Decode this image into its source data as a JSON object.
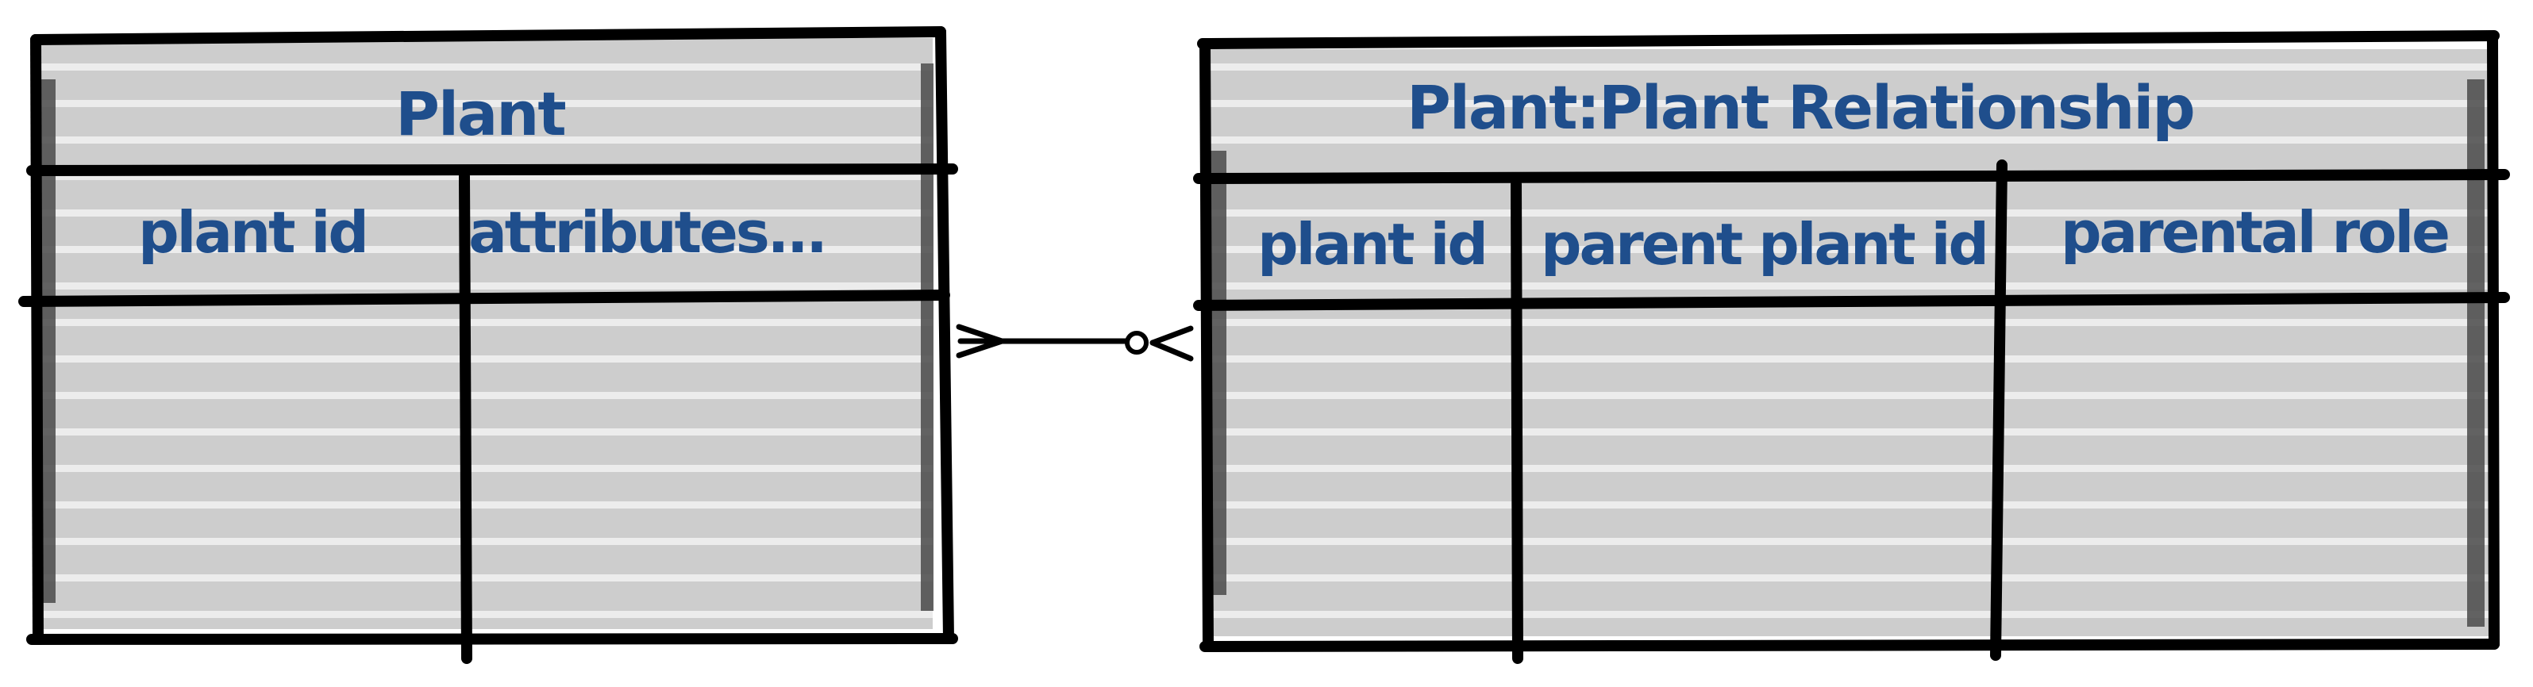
{
  "colors": {
    "text": "#1f4e8c",
    "fill": "#cdcdcd",
    "stripe": "#ececec",
    "line": "#000000",
    "shadow": "#4a4a4a"
  },
  "entities": [
    {
      "title": "Plant",
      "columns": [
        "plant id",
        "attributes..."
      ]
    },
    {
      "title": "Plant:Plant Relationship",
      "columns": [
        "plant id",
        "parent plant id",
        "parental role"
      ]
    }
  ],
  "relationship": {
    "left_end": "many",
    "right_end": "zero-or-many"
  }
}
